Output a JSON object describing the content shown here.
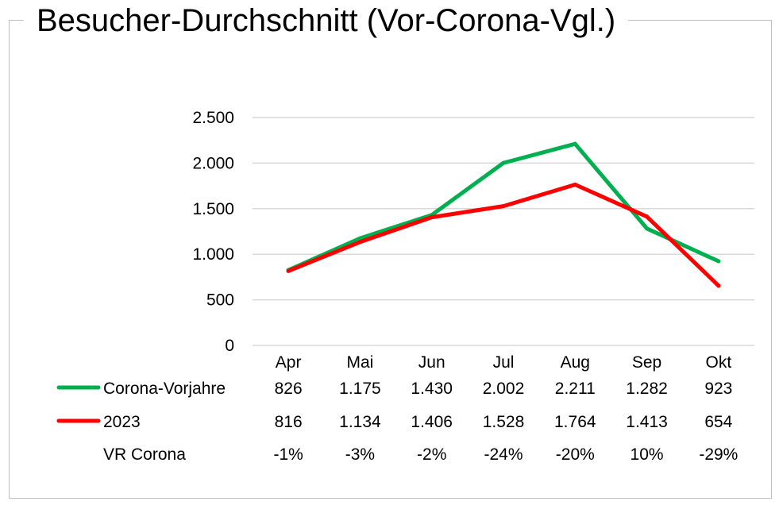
{
  "chart_data": {
    "type": "line",
    "title": "Besucher-Durchschnitt (Vor-Corona-Vgl.)",
    "categories": [
      "Apr",
      "Mai",
      "Jun",
      "Jul",
      "Aug",
      "Sep",
      "Okt"
    ],
    "ylim": [
      0,
      2500
    ],
    "y_ticks": [
      0,
      500,
      1000,
      1500,
      2000,
      2500
    ],
    "y_tick_labels": [
      "0",
      "500",
      "1.000",
      "1.500",
      "2.000",
      "2.500"
    ],
    "grid": true,
    "legend": "data-table",
    "series": [
      {
        "name": "Corona-Vorjahre",
        "color": "#00b050",
        "values": [
          826,
          1175,
          1430,
          2002,
          2211,
          1282,
          923
        ],
        "labels": [
          "826",
          "1.175",
          "1.430",
          "2.002",
          "2.211",
          "1.282",
          "923"
        ]
      },
      {
        "name": "2023",
        "color": "#ff0000",
        "values": [
          816,
          1134,
          1406,
          1528,
          1764,
          1413,
          654
        ],
        "labels": [
          "816",
          "1.134",
          "1.406",
          "1.528",
          "1.764",
          "1.413",
          "654"
        ]
      }
    ],
    "extra_row": {
      "name": "VR Corona",
      "labels": [
        "-1%",
        "-3%",
        "-2%",
        "-24%",
        "-20%",
        "10%",
        "-29%"
      ]
    }
  }
}
